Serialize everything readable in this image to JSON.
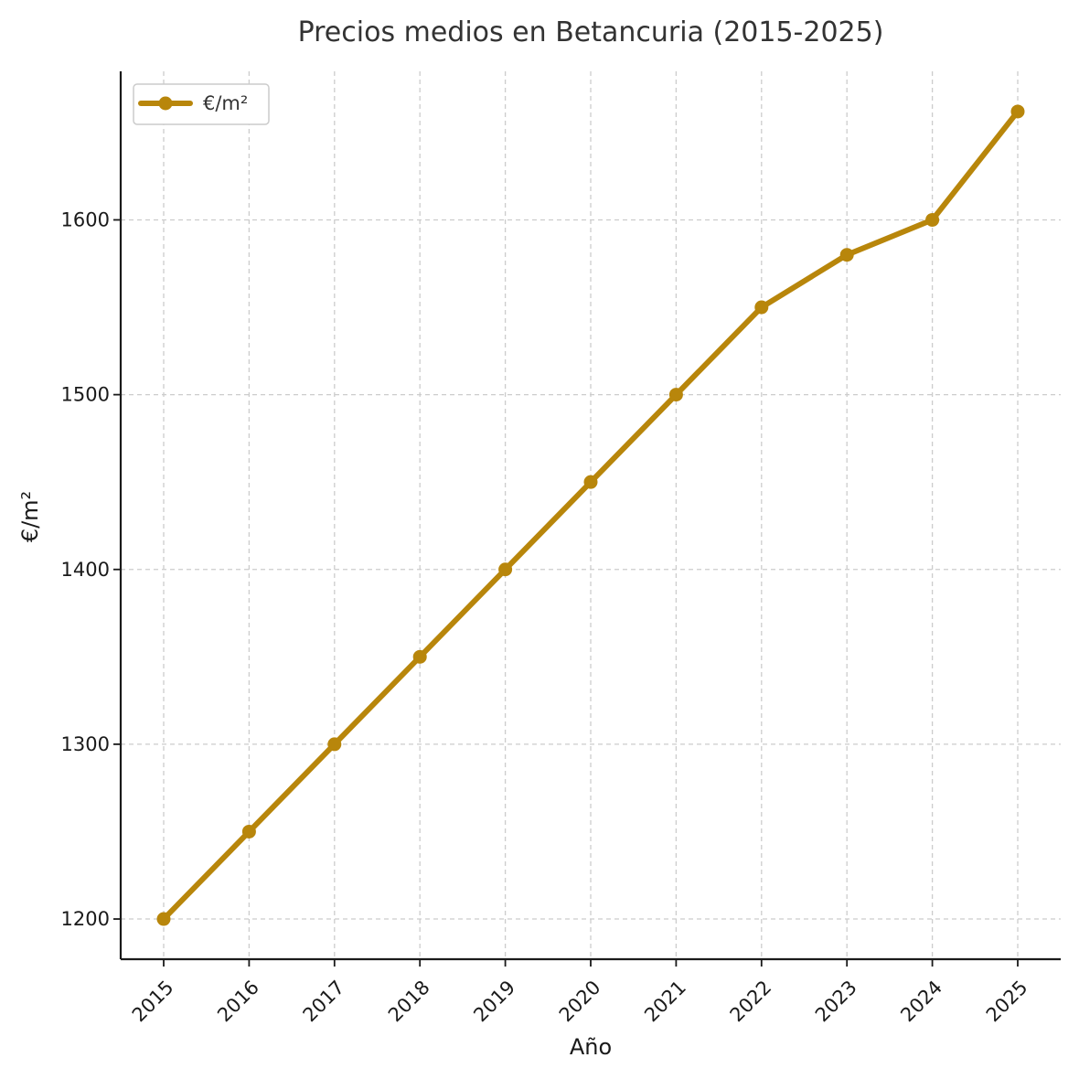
{
  "chart_data": {
    "type": "line",
    "title": "Precios medios en Betancuria (2015-2025)",
    "xlabel": "Año",
    "ylabel": "€/m²",
    "x": [
      "2015",
      "2016",
      "2017",
      "2018",
      "2019",
      "2020",
      "2021",
      "2022",
      "2023",
      "2024",
      "2025"
    ],
    "series": [
      {
        "name": "€/m²",
        "values": [
          1200,
          1250,
          1300,
          1350,
          1400,
          1450,
          1500,
          1550,
          1580,
          1600,
          1662
        ],
        "color": "#B8860B"
      }
    ],
    "yticks": [
      1200,
      1300,
      1400,
      1500,
      1600
    ],
    "ylim": [
      1177,
      1685
    ],
    "grid": true,
    "legend_position": "top-left"
  }
}
